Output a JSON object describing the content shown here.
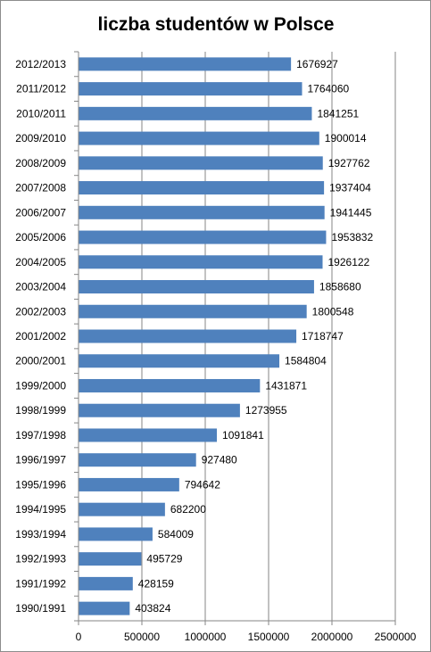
{
  "chart_data": {
    "type": "bar",
    "orientation": "horizontal",
    "title": "liczba studentów w Polsce",
    "xlabel": "",
    "ylabel": "",
    "categories": [
      "2012/2013",
      "2011/2012",
      "2010/2011",
      "2009/2010",
      "2008/2009",
      "2007/2008",
      "2006/2007",
      "2005/2006",
      "2004/2005",
      "2003/2004",
      "2002/2003",
      "2001/2002",
      "2000/2001",
      "1999/2000",
      "1998/1999",
      "1997/1998",
      "1996/1997",
      "1995/1996",
      "1994/1995",
      "1993/1994",
      "1992/1993",
      "1991/1992",
      "1990/1991"
    ],
    "values": [
      1676927,
      1764060,
      1841251,
      1900014,
      1927762,
      1937404,
      1941445,
      1953832,
      1926122,
      1858680,
      1800548,
      1718747,
      1584804,
      1431871,
      1273955,
      1091841,
      927480,
      794642,
      682200,
      584009,
      495729,
      428159,
      403824
    ],
    "xlim": [
      0,
      2500000
    ],
    "x_ticks": [
      "0",
      "500000",
      "1000000",
      "1500000",
      "2000000",
      "2500000"
    ],
    "grid": "vertical major gridlines",
    "legend": "none",
    "bar_color": "#4f81bd"
  }
}
